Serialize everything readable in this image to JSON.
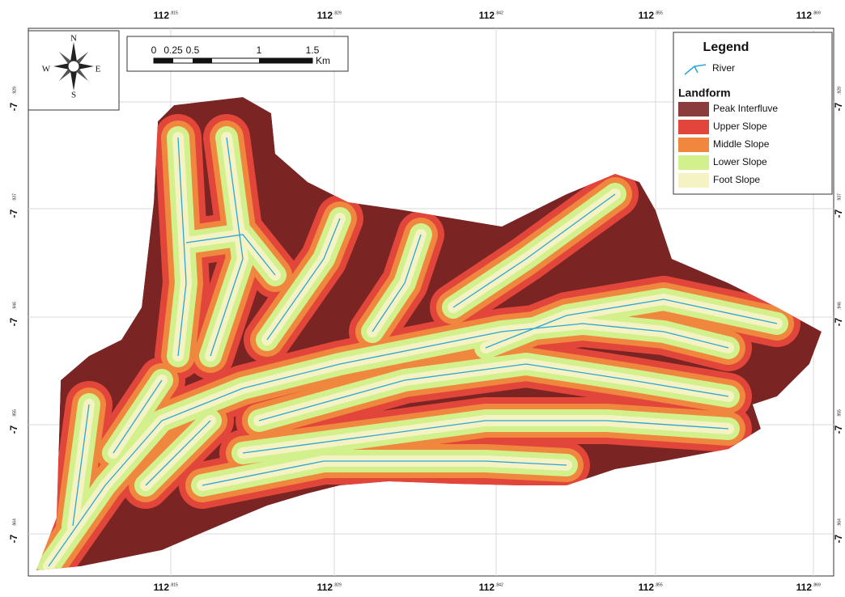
{
  "map": {
    "grid_x_labels": [
      {
        "main": "112",
        "sup": ".815"
      },
      {
        "main": "112",
        "sup": ".829"
      },
      {
        "main": "112",
        "sup": ".842"
      },
      {
        "main": "112",
        "sup": ".855"
      },
      {
        "main": "112",
        "sup": ".869"
      }
    ],
    "grid_y_labels": [
      {
        "main": "-7",
        "sup": ".929"
      },
      {
        "main": "-7",
        "sup": ".937"
      },
      {
        "main": "-7",
        "sup": ".946"
      },
      {
        "main": "-7",
        "sup": ".955"
      },
      {
        "main": "-7",
        "sup": ".964"
      }
    ],
    "north_arrow": {
      "n": "N",
      "s": "S",
      "e": "E",
      "w": "W"
    },
    "scale_bar": {
      "ticks": [
        "0",
        "0.25",
        "0.5",
        "1",
        "1.5"
      ],
      "unit": "Km"
    },
    "legend": {
      "title": "Legend",
      "river": "River",
      "section": "Landform",
      "items": [
        {
          "label": "Peak Interfluve",
          "color": "#8a3b3b"
        },
        {
          "label": "Upper Slope",
          "color": "#e2463a"
        },
        {
          "label": "Middle Slope",
          "color": "#f0873e"
        },
        {
          "label": "Lower Slope",
          "color": "#d2f08c"
        },
        {
          "label": "Foot Slope",
          "color": "#f5f2c4"
        }
      ]
    }
  }
}
